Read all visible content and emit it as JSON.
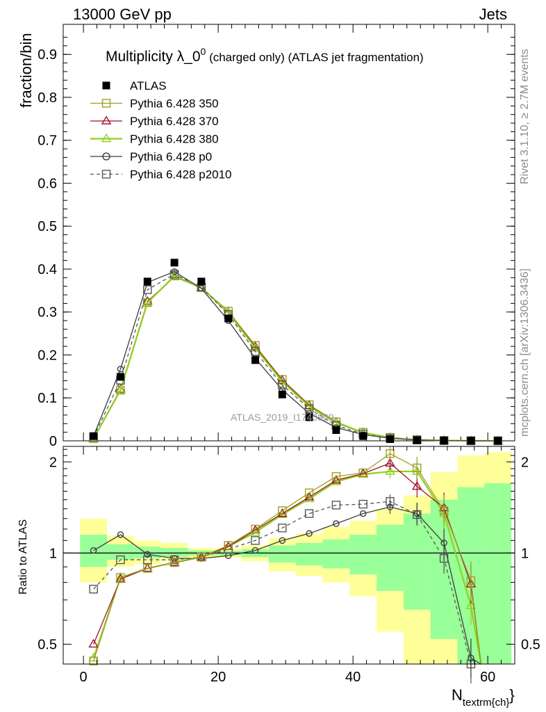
{
  "header": {
    "left": "13000 GeV pp",
    "right": "Jets"
  },
  "side_labels": {
    "top": "Rivet 3.1.10, ≥ 2.7M events",
    "bottom": "mcplots.cern.ch [arXiv:1306.3436]"
  },
  "watermark": "ATLAS_2019_I1740909",
  "colors": {
    "ATLAS": "#000000",
    "p350": "#9e9e24",
    "p370": "#a0102a",
    "p380": "#8ed11f",
    "p0": "#3c3c3c",
    "p2010": "#555555",
    "band_outer": "#ffff99",
    "band_inner": "#99ff99"
  },
  "chart_data": [
    {
      "type": "line",
      "title_main": "Multiplicity λ_0",
      "title_sup": "0",
      "title_rest": " (charged only) (ATLAS jet fragmentation)",
      "ylabel": "fraction/bin",
      "xlim": [
        -3,
        64
      ],
      "ylim": [
        0,
        0.97
      ],
      "yticks": [
        0,
        0.1,
        0.2,
        0.3,
        0.4,
        0.5,
        0.6,
        0.7,
        0.8,
        0.9
      ],
      "ytick_labels": [
        "0",
        "0.1",
        "0.2",
        "0.3",
        "0.4",
        "0.5",
        "0.6",
        "0.7",
        "0.8",
        "0.9"
      ],
      "legend_position": "top-left",
      "x": [
        1.5,
        5.5,
        9.5,
        13.5,
        17.5,
        21.5,
        25.5,
        29.5,
        33.5,
        37.5,
        41.5,
        45.5,
        49.5,
        53.5,
        57.5,
        61.5
      ],
      "series": [
        {
          "name": "ATLAS",
          "key": "ATLAS",
          "marker": "filled-square",
          "values": [
            0.011,
            0.149,
            0.371,
            0.415,
            0.371,
            0.285,
            0.188,
            0.108,
            0.055,
            0.025,
            0.011,
            0.004,
            0.0015,
            0.0006,
            0.0002,
            0.0001
          ]
        },
        {
          "name": "Pythia 6.428 350",
          "key": "p350",
          "marker": "open-square",
          "values": [
            0.005,
            0.118,
            0.322,
            0.385,
            0.357,
            0.302,
            0.222,
            0.143,
            0.084,
            0.044,
            0.02,
            0.008,
            0.0026,
            0.0008,
            0.0002,
            5e-05
          ]
        },
        {
          "name": "Pythia 6.428 370",
          "key": "p370",
          "marker": "open-triangle",
          "values": [
            0.0055,
            0.12,
            0.325,
            0.382,
            0.356,
            0.299,
            0.219,
            0.141,
            0.082,
            0.043,
            0.019,
            0.0078,
            0.0025,
            0.0008,
            0.0002,
            5e-05
          ]
        },
        {
          "name": "Pythia 6.428 380",
          "key": "p380",
          "marker": "open-triangle",
          "values": [
            0.005,
            0.118,
            0.322,
            0.383,
            0.357,
            0.298,
            0.216,
            0.138,
            0.08,
            0.042,
            0.019,
            0.0074,
            0.0025,
            0.0008,
            0.0002,
            5e-05
          ]
        },
        {
          "name": "Pythia 6.428 p0",
          "key": "p0",
          "marker": "open-circle",
          "values": [
            0.0112,
            0.167,
            0.369,
            0.394,
            0.355,
            0.28,
            0.192,
            0.119,
            0.064,
            0.031,
            0.0145,
            0.0057,
            0.002,
            0.0006,
            0.0001,
            2e-05
          ]
        },
        {
          "name": "Pythia 6.428 p2010",
          "key": "p2010",
          "marker": "open-square-dashed",
          "values": [
            0.0084,
            0.141,
            0.352,
            0.388,
            0.358,
            0.294,
            0.208,
            0.13,
            0.075,
            0.036,
            0.016,
            0.0062,
            0.002,
            0.0006,
            0.0001,
            2e-05
          ]
        }
      ]
    },
    {
      "type": "line",
      "ylabel": "Ratio to ATLAS",
      "xlabel": "N_textrm{ch}",
      "xlabel_main": "N",
      "xlabel_sub": "textrm{ch}",
      "xlabel_tail": "}",
      "xlim": [
        -3,
        64
      ],
      "ylim": [
        0.43,
        2.25
      ],
      "yticks": [
        0.5,
        1,
        2
      ],
      "ytick_labels": [
        "0.5",
        "1",
        "2"
      ],
      "xticks": [
        0,
        20,
        40,
        60
      ],
      "xtick_labels": [
        "0",
        "20",
        "40",
        "60"
      ],
      "x": [
        1.5,
        5.5,
        9.5,
        13.5,
        17.5,
        21.5,
        25.5,
        29.5,
        33.5,
        37.5,
        41.5,
        45.5,
        49.5,
        53.5,
        57.5,
        61.5
      ],
      "bin_edges": [
        -0.5,
        3.5,
        7.5,
        11.5,
        15.5,
        19.5,
        23.5,
        27.5,
        31.5,
        35.5,
        39.5,
        43.5,
        47.5,
        51.5,
        55.5,
        59.5,
        63.5
      ],
      "band_outer": [
        [
          0.8,
          1.3
        ],
        [
          0.9,
          1.14
        ],
        [
          0.92,
          1.1
        ],
        [
          0.94,
          1.08
        ],
        [
          0.96,
          1.04
        ],
        [
          0.965,
          1.035
        ],
        [
          0.94,
          1.06
        ],
        [
          0.87,
          1.12
        ],
        [
          0.84,
          1.16
        ],
        [
          0.8,
          1.22
        ],
        [
          0.72,
          1.28
        ],
        [
          0.55,
          1.4
        ],
        [
          0.43,
          1.55
        ],
        [
          0.43,
          1.85
        ],
        [
          0.43,
          2.1
        ],
        [
          0.43,
          2.15
        ]
      ],
      "band_inner": [
        [
          0.9,
          1.15
        ],
        [
          0.95,
          1.07
        ],
        [
          0.96,
          1.05
        ],
        [
          0.97,
          1.04
        ],
        [
          0.98,
          1.02
        ],
        [
          0.983,
          1.017
        ],
        [
          0.97,
          1.03
        ],
        [
          0.93,
          1.06
        ],
        [
          0.91,
          1.08
        ],
        [
          0.89,
          1.11
        ],
        [
          0.85,
          1.15
        ],
        [
          0.75,
          1.24
        ],
        [
          0.65,
          1.35
        ],
        [
          0.52,
          1.5
        ],
        [
          0.43,
          1.65
        ],
        [
          0.43,
          1.7
        ]
      ],
      "series": [
        {
          "name": "Pythia 6.428 350",
          "key": "p350",
          "marker": "open-square",
          "values": [
            0.44,
            0.83,
            0.89,
            0.93,
            0.97,
            1.06,
            1.2,
            1.38,
            1.58,
            1.79,
            1.84,
            2.13,
            1.91,
            1.38,
            0.81,
            null
          ]
        },
        {
          "name": "Pythia 6.428 370",
          "key": "p370",
          "marker": "open-triangle",
          "values": [
            0.5,
            0.82,
            0.89,
            0.93,
            0.97,
            1.05,
            1.19,
            1.35,
            1.53,
            1.74,
            1.83,
            1.98,
            1.66,
            1.41,
            0.79,
            null
          ]
        },
        {
          "name": "Pythia 6.428 380",
          "key": "p380",
          "marker": "open-triangle",
          "values": [
            0.45,
            0.83,
            0.89,
            0.93,
            0.97,
            1.05,
            1.17,
            1.34,
            1.51,
            1.72,
            1.82,
            1.86,
            1.86,
            1.35,
            0.67,
            null
          ]
        },
        {
          "name": "Pythia 6.428 p0",
          "key": "p0",
          "marker": "open-circle",
          "values": [
            1.02,
            1.15,
            0.99,
            0.96,
            0.96,
            0.98,
            1.02,
            1.1,
            1.16,
            1.25,
            1.35,
            1.42,
            1.35,
            1.08,
            0.45,
            null
          ]
        },
        {
          "name": "Pythia 6.428 p2010",
          "key": "p2010",
          "marker": "open-square-dashed",
          "values": [
            0.76,
            0.95,
            0.95,
            0.95,
            0.97,
            1.03,
            1.1,
            1.21,
            1.35,
            1.44,
            1.45,
            1.48,
            1.34,
            0.96,
            0.42,
            null
          ]
        }
      ]
    }
  ]
}
